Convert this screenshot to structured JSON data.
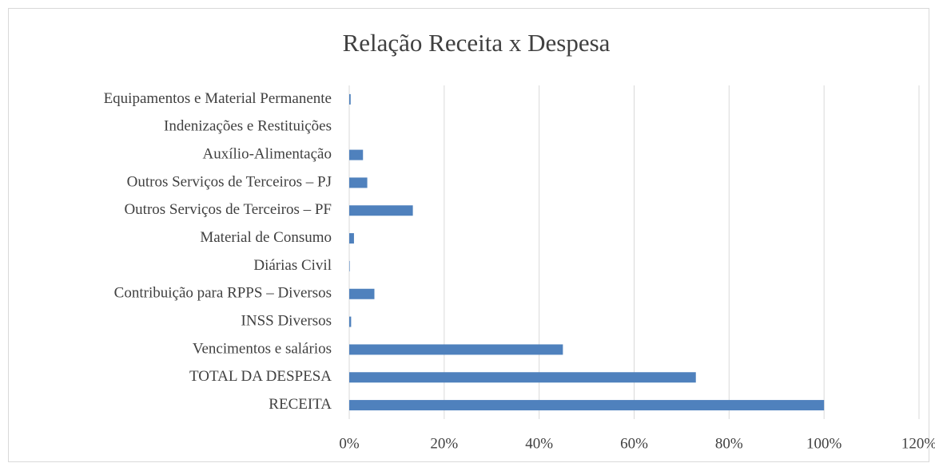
{
  "chart_data": {
    "type": "barh",
    "title": "Relação Receita x Despesa",
    "categories": [
      "RECEITA",
      "TOTAL DA DESPESA",
      "Vencimentos e salários",
      "INSS Diversos",
      "Contribuição para RPPS – Diversos",
      "Diárias Civil",
      "Material de Consumo",
      "Outros Serviços de Terceiros – PF",
      "Outros Serviços de Terceiros – PJ",
      "Auxílio-Alimentação",
      "Indenizações e Restituições",
      "Equipamentos e Material Permanente"
    ],
    "values": [
      100,
      73,
      45,
      0.4,
      5.3,
      0.1,
      1,
      13.4,
      3.8,
      2.9,
      0,
      0.3
    ],
    "color": "#4f81bd",
    "xlim": [
      0,
      120
    ],
    "xticks": [
      {
        "value": 0,
        "label": "0%"
      },
      {
        "value": 20,
        "label": "20%"
      },
      {
        "value": 40,
        "label": "40%"
      },
      {
        "value": 60,
        "label": "60%"
      },
      {
        "value": 80,
        "label": "80%"
      },
      {
        "value": 100,
        "label": "100%"
      },
      {
        "value": 120,
        "label": "120%"
      }
    ],
    "grid": true
  }
}
